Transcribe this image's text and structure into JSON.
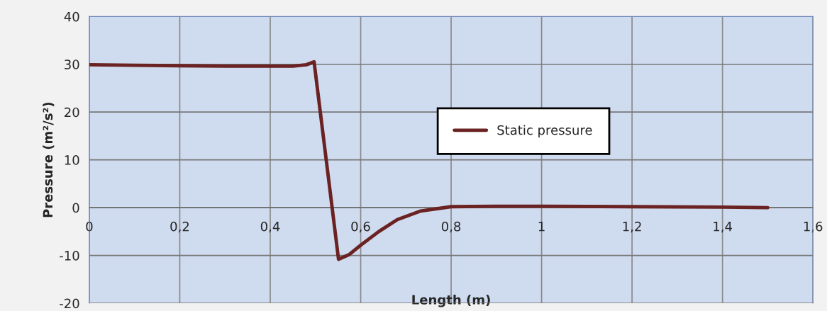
{
  "chart_data": {
    "type": "line",
    "xlabel": "Length (m)",
    "ylabel": "Pressure (m²/s²)",
    "xlim": [
      0,
      1.6
    ],
    "ylim": [
      -20,
      40
    ],
    "xticks": [
      0,
      {
        "value": 0.2,
        "label": "0,2"
      },
      {
        "value": 0.4,
        "label": "0,4"
      },
      {
        "value": 0.6,
        "label": "0,6"
      },
      {
        "value": 0.8,
        "label": "0,8"
      },
      1,
      {
        "value": 1.2,
        "label": "1,2"
      },
      {
        "value": 1.4,
        "label": "1,4"
      },
      {
        "value": 1.6,
        "label": "1,6"
      }
    ],
    "yticks": [
      -20,
      -10,
      0,
      10,
      20,
      30,
      40
    ],
    "grid": true,
    "legend": "center",
    "series": [
      {
        "name": "Static pressure",
        "color": "#6b2222",
        "x": [
          0,
          0.1,
          0.2,
          0.3,
          0.4,
          0.45,
          0.48,
          0.497,
          0.551,
          0.575,
          0.598,
          0.64,
          0.681,
          0.733,
          0.8,
          0.9,
          1.0,
          1.2,
          1.4,
          1.5
        ],
        "values": [
          29.9,
          29.8,
          29.7,
          29.6,
          29.6,
          29.6,
          29.9,
          30.5,
          -10.8,
          -9.8,
          -8.0,
          -5.0,
          -2.5,
          -0.7,
          0.2,
          0.3,
          0.3,
          0.2,
          0.1,
          0
        ]
      }
    ]
  }
}
